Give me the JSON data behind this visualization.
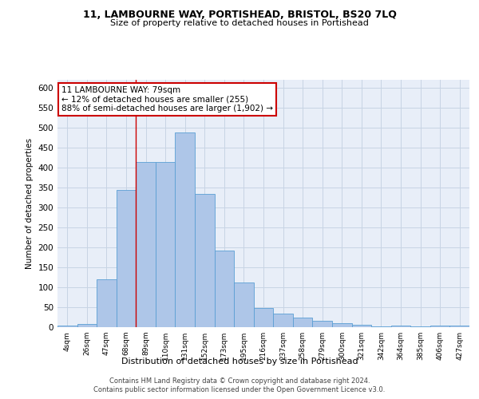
{
  "title1": "11, LAMBOURNE WAY, PORTISHEAD, BRISTOL, BS20 7LQ",
  "title2": "Size of property relative to detached houses in Portishead",
  "xlabel": "Distribution of detached houses by size in Portishead",
  "ylabel": "Number of detached properties",
  "categories": [
    "4sqm",
    "26sqm",
    "47sqm",
    "68sqm",
    "89sqm",
    "110sqm",
    "131sqm",
    "152sqm",
    "173sqm",
    "195sqm",
    "216sqm",
    "237sqm",
    "258sqm",
    "279sqm",
    "300sqm",
    "321sqm",
    "342sqm",
    "364sqm",
    "385sqm",
    "406sqm",
    "427sqm"
  ],
  "values": [
    5,
    8,
    120,
    345,
    415,
    415,
    488,
    335,
    192,
    113,
    48,
    35,
    25,
    16,
    10,
    6,
    3,
    5,
    3,
    5,
    5
  ],
  "bar_color": "#aec6e8",
  "bar_edge_color": "#5a9fd4",
  "red_line_x": 3.5,
  "annotation_line1": "11 LAMBOURNE WAY: 79sqm",
  "annotation_line2": "← 12% of detached houses are smaller (255)",
  "annotation_line3": "88% of semi-detached houses are larger (1,902) →",
  "annotation_box_color": "#ffffff",
  "annotation_box_edge": "#cc0000",
  "grid_color": "#c8d4e4",
  "bg_color": "#e8eef8",
  "footer1": "Contains HM Land Registry data © Crown copyright and database right 2024.",
  "footer2": "Contains public sector information licensed under the Open Government Licence v3.0.",
  "ylim": [
    0,
    620
  ],
  "yticks": [
    0,
    50,
    100,
    150,
    200,
    250,
    300,
    350,
    400,
    450,
    500,
    550,
    600
  ]
}
